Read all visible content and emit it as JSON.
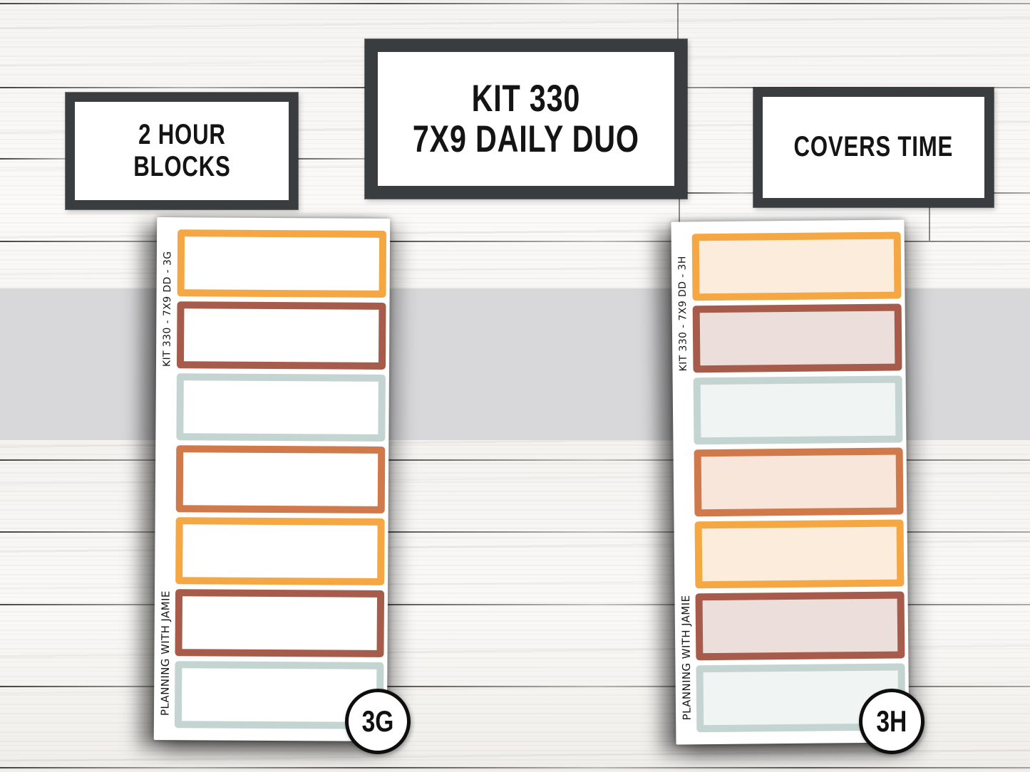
{
  "plaques": {
    "left": {
      "lines": [
        "2 HOUR",
        "BLOCKS"
      ]
    },
    "center": {
      "lines": [
        "KIT 330",
        "7X9 DAILY DUO"
      ]
    },
    "right": {
      "lines": [
        "COVERS TIME"
      ]
    }
  },
  "sheets": {
    "left": {
      "side_text_top": "KIT 330 - 7X9 DD - 3G",
      "side_text_bottom": "PLANNING WITH JAMIE",
      "badge": "3G",
      "boxes": [
        {
          "border": "#f5a743",
          "fill": "#ffffff"
        },
        {
          "border": "#a65b4b",
          "fill": "#ffffff"
        },
        {
          "border": "#c4d5d1",
          "fill": "#ffffff"
        },
        {
          "border": "#d0794a",
          "fill": "#ffffff"
        },
        {
          "border": "#f5a743",
          "fill": "#ffffff"
        },
        {
          "border": "#a65b4b",
          "fill": "#ffffff"
        },
        {
          "border": "#c4d5d1",
          "fill": "#ffffff"
        }
      ]
    },
    "right": {
      "side_text_top": "KIT 330 - 7X9 DD - 3H",
      "side_text_bottom": "PLANNING WITH JAMIE",
      "badge": "3H",
      "boxes": [
        {
          "border": "#f5a743",
          "fill": "#fbecdb"
        },
        {
          "border": "#a65b4b",
          "fill": "#ecdeda"
        },
        {
          "border": "#c4d5d1",
          "fill": "#f0f5f3"
        },
        {
          "border": "#d0794a",
          "fill": "#f8e6db"
        },
        {
          "border": "#f5a743",
          "fill": "#fbecdb"
        },
        {
          "border": "#a65b4b",
          "fill": "#ecdeda"
        },
        {
          "border": "#c4d5d1",
          "fill": "#f0f5f3"
        }
      ]
    }
  },
  "colors": {
    "plaque_frame": "#3a3d3f",
    "backdrop_band": "#d8d8da",
    "yellow": "#f5a743",
    "rust": "#a65b4b",
    "sage_blue": "#c4d5d1",
    "orange": "#d0794a"
  }
}
